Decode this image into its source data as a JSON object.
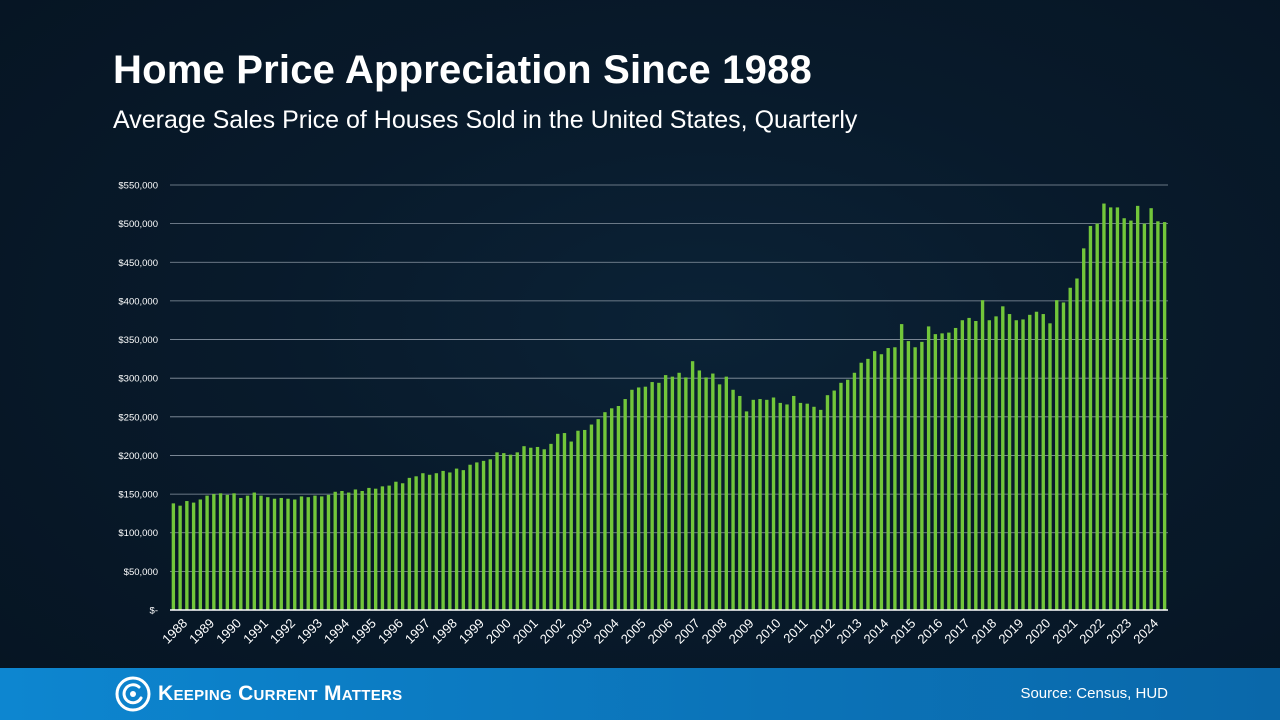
{
  "header": {
    "title": "Home Price Appreciation Since 1988",
    "subtitle": "Average Sales Price of Houses Sold in the United States, Quarterly"
  },
  "footer": {
    "brand": "Keeping Current Matters",
    "source": "Source: Census, HUD"
  },
  "colors": {
    "bar": "#72c63a",
    "background": "#081a2b",
    "footer": "#0b78be",
    "grid": "#8a96a3"
  },
  "chart_data": {
    "type": "bar",
    "ylim": [
      0,
      550000
    ],
    "y_ticks": [
      {
        "value": 0,
        "label": "$-"
      },
      {
        "value": 50000,
        "label": "$50,000"
      },
      {
        "value": 100000,
        "label": "$100,000"
      },
      {
        "value": 150000,
        "label": "$150,000"
      },
      {
        "value": 200000,
        "label": "$200,000"
      },
      {
        "value": 250000,
        "label": "$250,000"
      },
      {
        "value": 300000,
        "label": "$300,000"
      },
      {
        "value": 350000,
        "label": "$350,000"
      },
      {
        "value": 400000,
        "label": "$400,000"
      },
      {
        "value": 450000,
        "label": "$450,000"
      },
      {
        "value": 500000,
        "label": "$500,000"
      },
      {
        "value": 550000,
        "label": "$550,000"
      }
    ],
    "x_tick_labels": [
      "1988",
      "1989",
      "1990",
      "1991",
      "1992",
      "1993",
      "1994",
      "1995",
      "1996",
      "1997",
      "1998",
      "1999",
      "2000",
      "2001",
      "2002",
      "2003",
      "2004",
      "2005",
      "2006",
      "2007",
      "2008",
      "2009",
      "2010",
      "2011",
      "2012",
      "2013",
      "2014",
      "2015",
      "2016",
      "2017",
      "2018",
      "2019",
      "2020",
      "2021",
      "2022",
      "2023",
      "2024"
    ],
    "grid": true,
    "values": [
      138000,
      135000,
      141000,
      139000,
      143000,
      148000,
      150000,
      151000,
      149000,
      151000,
      145000,
      148000,
      152000,
      148000,
      146000,
      144000,
      145000,
      144000,
      143000,
      147000,
      146000,
      148000,
      147000,
      149000,
      153000,
      154000,
      152000,
      156000,
      154000,
      158000,
      157000,
      160000,
      161000,
      166000,
      164000,
      171000,
      173000,
      177000,
      175000,
      177000,
      180000,
      178000,
      183000,
      181000,
      188000,
      191000,
      193000,
      195000,
      204000,
      203000,
      201000,
      204000,
      212000,
      210000,
      211000,
      208000,
      215000,
      228000,
      229000,
      218000,
      232000,
      233000,
      240000,
      247000,
      256000,
      261000,
      264000,
      273000,
      285000,
      288000,
      289000,
      295000,
      294000,
      304000,
      302000,
      307000,
      301000,
      322000,
      310000,
      301000,
      306000,
      292000,
      302000,
      285000,
      277000,
      257000,
      272000,
      273000,
      272000,
      275000,
      268000,
      266000,
      277000,
      268000,
      267000,
      263000,
      259000,
      278000,
      284000,
      294000,
      298000,
      307000,
      320000,
      325000,
      335000,
      331000,
      339000,
      340000,
      370000,
      348000,
      340000,
      347000,
      367000,
      357000,
      358000,
      359000,
      365000,
      375000,
      378000,
      374000,
      401000,
      375000,
      380000,
      393000,
      383000,
      375000,
      376000,
      382000,
      386000,
      383000,
      371000,
      401000,
      398000,
      417000,
      429000,
      468000,
      497000,
      500000,
      526000,
      521000,
      521000,
      507000,
      504000,
      523000,
      500000,
      520000,
      503000,
      502000
    ]
  }
}
